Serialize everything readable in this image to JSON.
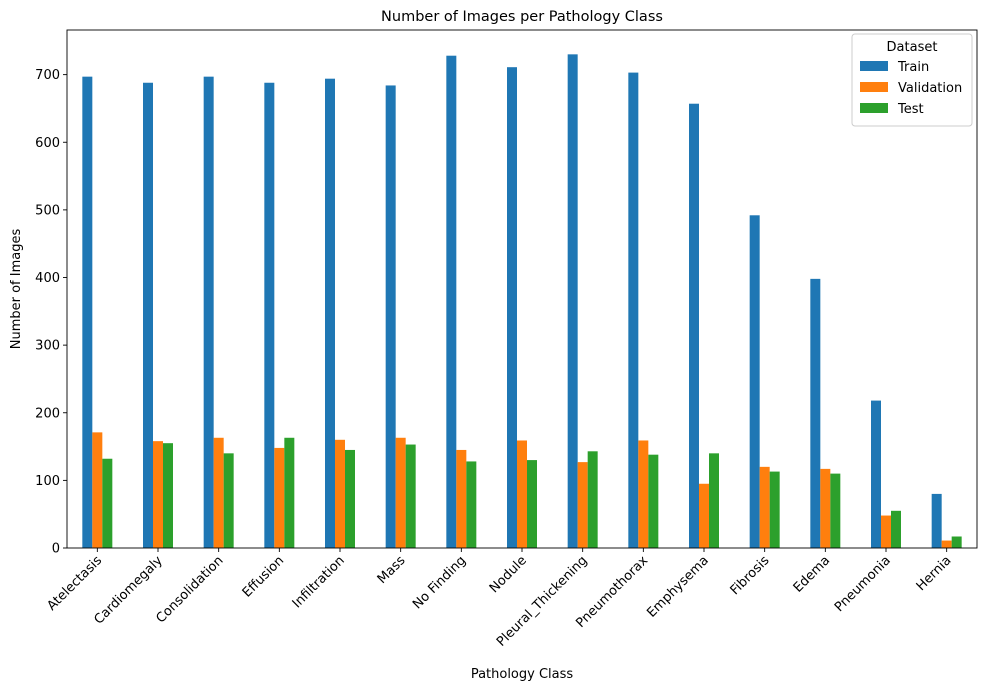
{
  "chart_data": {
    "type": "bar",
    "title": "Number of Images per Pathology Class",
    "xlabel": "Pathology Class",
    "ylabel": "Number of Images",
    "ylim": [
      0,
      766
    ],
    "yticks": [
      0,
      100,
      200,
      300,
      400,
      500,
      600,
      700
    ],
    "grid": false,
    "legend": {
      "title": "Dataset",
      "placement": "top-right"
    },
    "categories": [
      "Atelectasis",
      "Cardiomegaly",
      "Consolidation",
      "Effusion",
      "Infiltration",
      "Mass",
      "No Finding",
      "Nodule",
      "Pleural_Thickening",
      "Pneumothorax",
      "Emphysema",
      "Fibrosis",
      "Edema",
      "Pneumonia",
      "Hernia"
    ],
    "series": [
      {
        "name": "Train",
        "color": "#1f77b4",
        "values": [
          697,
          688,
          697,
          688,
          694,
          684,
          728,
          711,
          730,
          703,
          657,
          492,
          398,
          218,
          80
        ]
      },
      {
        "name": "Validation",
        "color": "#ff7f0e",
        "values": [
          171,
          158,
          163,
          148,
          160,
          163,
          145,
          159,
          127,
          159,
          95,
          120,
          117,
          48,
          11
        ]
      },
      {
        "name": "Test",
        "color": "#2ca02c",
        "values": [
          132,
          155,
          140,
          163,
          145,
          153,
          128,
          130,
          143,
          138,
          140,
          113,
          110,
          55,
          17
        ]
      }
    ]
  }
}
